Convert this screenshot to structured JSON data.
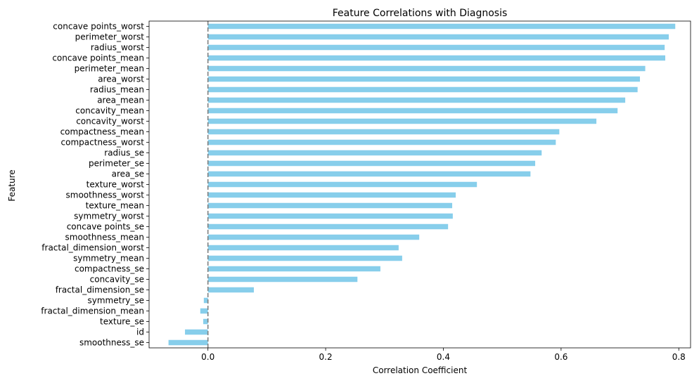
{
  "chart_data": {
    "type": "bar",
    "orientation": "horizontal",
    "title": "Feature Correlations with Diagnosis",
    "xlabel": "Correlation Coefficient",
    "ylabel": "Feature",
    "xlim": [
      -0.1,
      0.82
    ],
    "xticks": [
      0.0,
      0.2,
      0.4,
      0.6,
      0.8
    ],
    "xtick_labels": [
      "0.0",
      "0.2",
      "0.4",
      "0.6",
      "0.8"
    ],
    "grid": false,
    "reference_line": {
      "x": 0.0,
      "style": "dashed",
      "color": "#808080"
    },
    "bar_color": "#87CEEB",
    "categories": [
      "concave points_worst",
      "perimeter_worst",
      "radius_worst",
      "concave points_mean",
      "perimeter_mean",
      "area_worst",
      "radius_mean",
      "area_mean",
      "concavity_mean",
      "concavity_worst",
      "compactness_mean",
      "compactness_worst",
      "radius_se",
      "perimeter_se",
      "area_se",
      "texture_worst",
      "smoothness_worst",
      "texture_mean",
      "symmetry_worst",
      "concave points_se",
      "smoothness_mean",
      "fractal_dimension_worst",
      "symmetry_mean",
      "compactness_se",
      "concavity_se",
      "fractal_dimension_se",
      "symmetry_se",
      "fractal_dimension_mean",
      "texture_se",
      "id",
      "smoothness_se"
    ],
    "values": [
      0.794,
      0.783,
      0.776,
      0.777,
      0.743,
      0.734,
      0.73,
      0.709,
      0.696,
      0.66,
      0.597,
      0.591,
      0.567,
      0.556,
      0.548,
      0.457,
      0.421,
      0.415,
      0.416,
      0.408,
      0.359,
      0.324,
      0.33,
      0.293,
      0.254,
      0.078,
      -0.007,
      -0.013,
      -0.008,
      -0.039,
      -0.067
    ]
  }
}
